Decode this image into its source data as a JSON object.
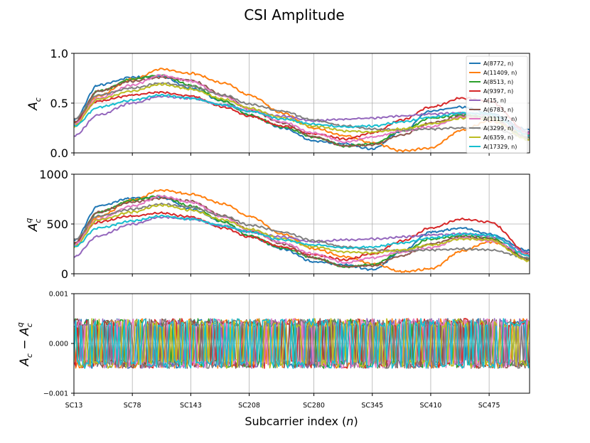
{
  "figure": {
    "title": "CSI Amplitude",
    "xlabel_main": "Subcarrier index (",
    "xlabel_var": "n",
    "xlabel_close": ")"
  },
  "x_ticks": [
    "SC13",
    "SC78",
    "SC143",
    "SC208",
    "SC280",
    "SC345",
    "SC410",
    "SC475"
  ],
  "subplot_labels": {
    "top": {
      "base": "A",
      "sub": "c"
    },
    "middle": {
      "base": "A",
      "sub": "c",
      "sup": "q"
    },
    "bottom": {
      "a": "A",
      "a_sub": "c",
      "op": " − ",
      "b": "A",
      "b_sub": "c",
      "b_sup": "q"
    }
  },
  "legend": [
    {
      "label": "A(8772, n)",
      "color": "#1f77b4"
    },
    {
      "label": "A(11409, n)",
      "color": "#ff7f0e"
    },
    {
      "label": "A(8513, n)",
      "color": "#2ca02c"
    },
    {
      "label": "A(9397, n)",
      "color": "#d62728"
    },
    {
      "label": "A(15, n)",
      "color": "#9467bd"
    },
    {
      "label": "A(6783, n)",
      "color": "#8c564b"
    },
    {
      "label": "A(11137, n)",
      "color": "#e377c2"
    },
    {
      "label": "A(3299, n)",
      "color": "#7f7f7f"
    },
    {
      "label": "A(6359, n)",
      "color": "#bcbd22"
    },
    {
      "label": "A(17329, n)",
      "color": "#17becf"
    }
  ],
  "chart_data": [
    {
      "type": "line",
      "title": "CSI Amplitude",
      "xlabel": "Subcarrier index (n)",
      "ylabel": "A_c",
      "xlim": [
        13,
        520
      ],
      "ylim": [
        0,
        1.0
      ],
      "yticks": [
        "0.0",
        "0.5",
        "1.0"
      ],
      "x": [
        13,
        40,
        78,
        110,
        143,
        180,
        208,
        245,
        280,
        315,
        345,
        378,
        410,
        445,
        475,
        520
      ],
      "series": [
        {
          "name": "A(8772, n)",
          "values": [
            0.33,
            0.68,
            0.76,
            0.77,
            0.65,
            0.52,
            0.38,
            0.25,
            0.12,
            0.09,
            0.04,
            0.22,
            0.42,
            0.46,
            0.4,
            0.23
          ]
        },
        {
          "name": "A(11409, n)",
          "values": [
            0.3,
            0.57,
            0.74,
            0.84,
            0.8,
            0.7,
            0.58,
            0.4,
            0.25,
            0.17,
            0.1,
            0.02,
            0.05,
            0.23,
            0.32,
            0.19
          ]
        },
        {
          "name": "A(8513, n)",
          "values": [
            0.3,
            0.62,
            0.74,
            0.78,
            0.68,
            0.52,
            0.38,
            0.26,
            0.16,
            0.07,
            0.09,
            0.22,
            0.35,
            0.38,
            0.36,
            0.15
          ]
        },
        {
          "name": "A(9397, n)",
          "values": [
            0.31,
            0.52,
            0.58,
            0.61,
            0.57,
            0.46,
            0.37,
            0.27,
            0.19,
            0.14,
            0.2,
            0.33,
            0.46,
            0.55,
            0.52,
            0.2
          ]
        },
        {
          "name": "A(15, n)",
          "values": [
            0.17,
            0.38,
            0.5,
            0.57,
            0.55,
            0.48,
            0.42,
            0.37,
            0.32,
            0.34,
            0.35,
            0.37,
            0.39,
            0.4,
            0.38,
            0.21
          ]
        },
        {
          "name": "A(6783, n)",
          "values": [
            0.31,
            0.62,
            0.72,
            0.76,
            0.73,
            0.58,
            0.44,
            0.3,
            0.16,
            0.07,
            0.08,
            0.18,
            0.3,
            0.37,
            0.35,
            0.14
          ]
        },
        {
          "name": "A(11137, n)",
          "values": [
            0.29,
            0.55,
            0.68,
            0.78,
            0.72,
            0.57,
            0.44,
            0.31,
            0.2,
            0.11,
            0.16,
            0.22,
            0.26,
            0.36,
            0.33,
            0.19
          ]
        },
        {
          "name": "A(3299, n)",
          "values": [
            0.34,
            0.58,
            0.65,
            0.7,
            0.67,
            0.58,
            0.49,
            0.42,
            0.33,
            0.27,
            0.24,
            0.23,
            0.24,
            0.25,
            0.24,
            0.16
          ]
        },
        {
          "name": "A(6359, n)",
          "values": [
            0.27,
            0.54,
            0.62,
            0.69,
            0.64,
            0.54,
            0.45,
            0.35,
            0.27,
            0.22,
            0.21,
            0.24,
            0.29,
            0.35,
            0.34,
            0.13
          ]
        },
        {
          "name": "A(17329, n)",
          "values": [
            0.27,
            0.46,
            0.53,
            0.58,
            0.55,
            0.48,
            0.42,
            0.34,
            0.29,
            0.26,
            0.27,
            0.31,
            0.36,
            0.4,
            0.39,
            0.18
          ]
        }
      ]
    },
    {
      "type": "line",
      "ylabel": "A_c^q",
      "xlim": [
        13,
        520
      ],
      "ylim": [
        0,
        1000
      ],
      "yticks": [
        "0",
        "500",
        "1000"
      ],
      "scale": 1000,
      "series_source": "top subplot values multiplied by 1000"
    },
    {
      "type": "line",
      "ylabel": "A_c - A_c^q",
      "xlim": [
        13,
        520
      ],
      "ylim": [
        -0.001,
        0.001
      ],
      "yticks": [
        "−0.001",
        "0.000",
        "0.001"
      ],
      "noise_amplitude": 0.0005
    }
  ]
}
